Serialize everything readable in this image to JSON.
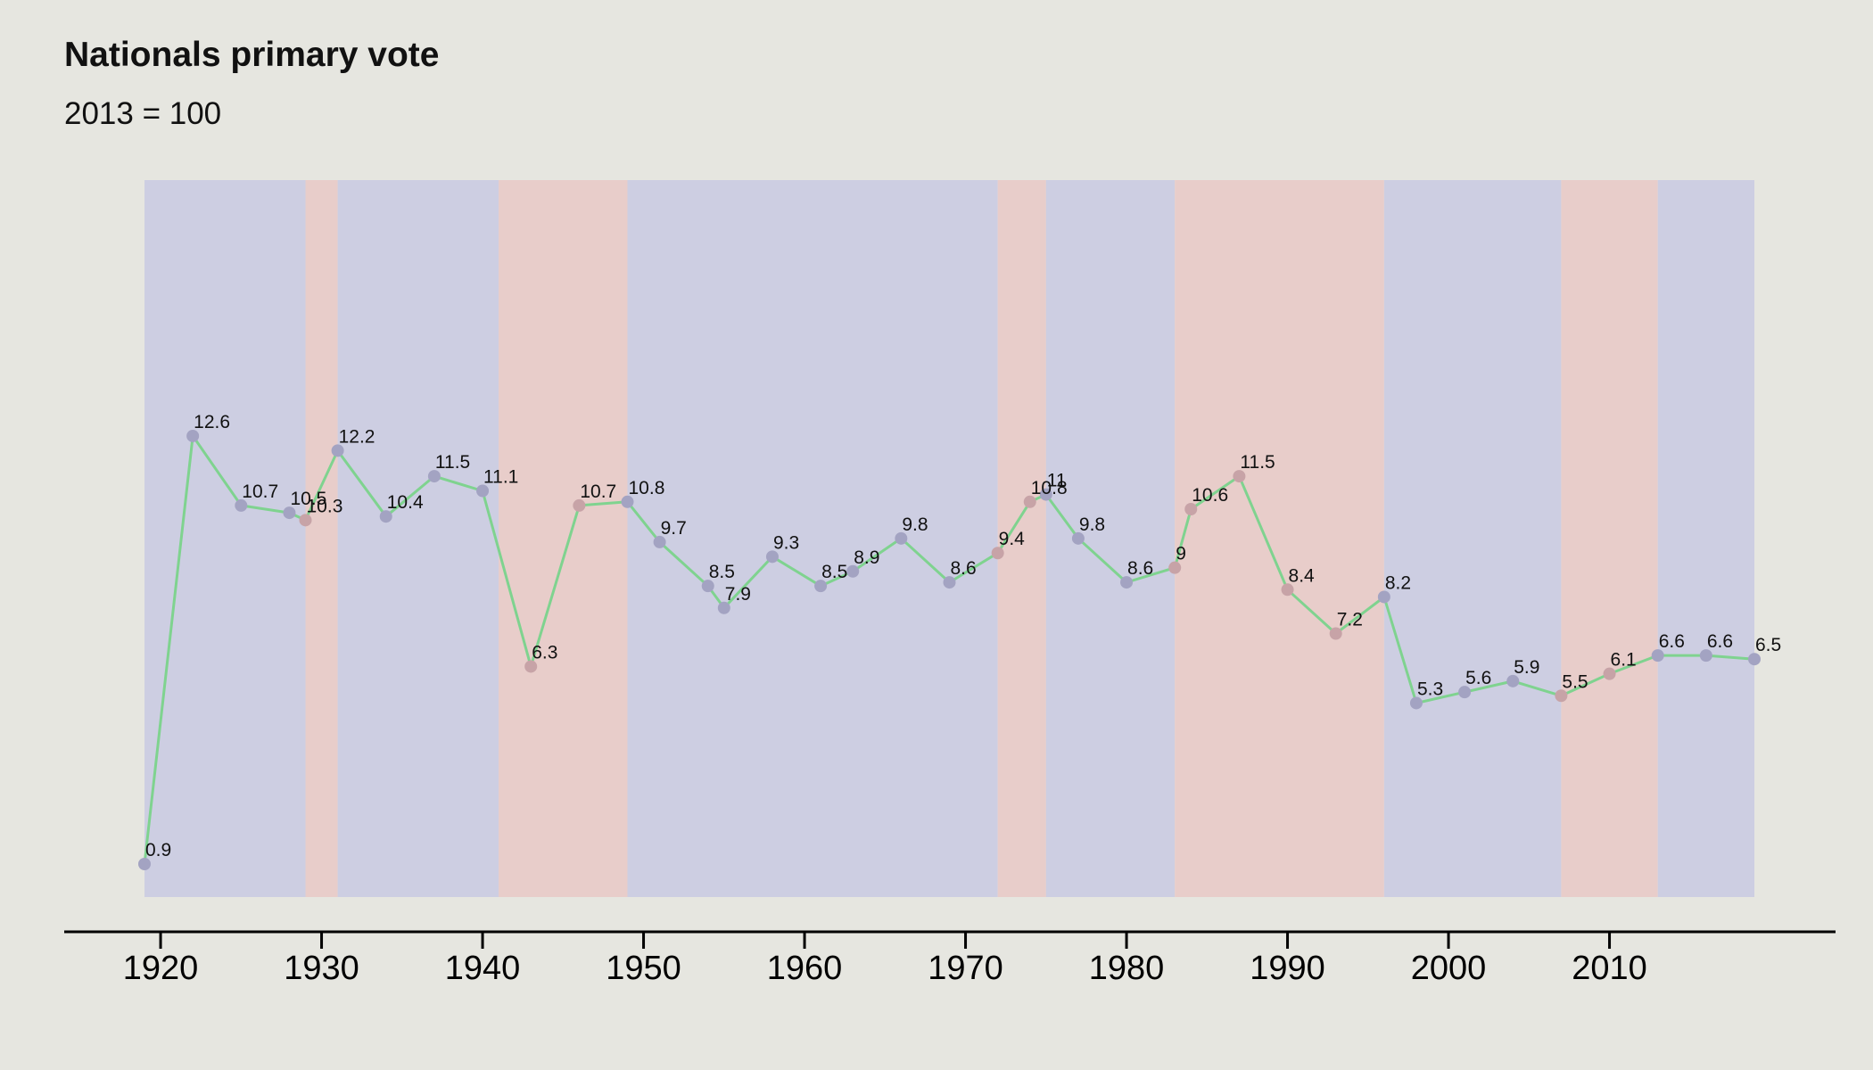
{
  "chart_data": {
    "type": "line",
    "title": "Nationals primary vote",
    "subtitle": "2013 = 100",
    "xlabel": "",
    "ylabel": "",
    "xlim": [
      1919,
      2019
    ],
    "ylim": [
      0.9,
      12.6
    ],
    "xticks": [
      1920,
      1930,
      1940,
      1950,
      1960,
      1970,
      1980,
      1990,
      2000,
      2010
    ],
    "grid": false,
    "legend": "none",
    "colors": {
      "background": "#e6e6e0",
      "band_coalition": "#cdcee2",
      "band_labor": "#e8cdca",
      "line": "#7fd38f",
      "point_coalition": "#a3a3c2",
      "point_labor": "#c7a3a7",
      "axis": "#000000"
    },
    "government_bands": [
      {
        "start": 1919,
        "end": 1929,
        "party": "coalition"
      },
      {
        "start": 1929,
        "end": 1931,
        "party": "labor"
      },
      {
        "start": 1931,
        "end": 1941,
        "party": "coalition"
      },
      {
        "start": 1941,
        "end": 1949,
        "party": "labor"
      },
      {
        "start": 1949,
        "end": 1972,
        "party": "coalition"
      },
      {
        "start": 1972,
        "end": 1975,
        "party": "labor"
      },
      {
        "start": 1975,
        "end": 1983,
        "party": "coalition"
      },
      {
        "start": 1983,
        "end": 1996,
        "party": "labor"
      },
      {
        "start": 1996,
        "end": 2007,
        "party": "coalition"
      },
      {
        "start": 2007,
        "end": 2013,
        "party": "labor"
      },
      {
        "start": 2013,
        "end": 2019,
        "party": "coalition"
      }
    ],
    "series": [
      {
        "x": [
          1919,
          1922,
          1925,
          1928,
          1929,
          1931,
          1934,
          1937,
          1940,
          1943,
          1946,
          1949,
          1951,
          1954,
          1955,
          1958,
          1961,
          1963,
          1966,
          1969,
          1972,
          1974,
          1975,
          1977,
          1980,
          1983,
          1984,
          1987,
          1990,
          1993,
          1996,
          1998,
          2001,
          2004,
          2007,
          2010,
          2013,
          2016,
          2019
        ],
        "values": [
          0.9,
          12.6,
          10.7,
          10.5,
          10.3,
          12.2,
          10.4,
          11.5,
          11.1,
          6.3,
          10.7,
          10.8,
          9.7,
          8.5,
          7.9,
          9.3,
          8.5,
          8.9,
          9.8,
          8.6,
          9.4,
          10.8,
          11,
          9.8,
          8.6,
          9,
          10.6,
          11.5,
          8.4,
          7.2,
          8.2,
          5.3,
          5.6,
          5.9,
          5.5,
          6.1,
          6.6,
          6.6,
          6.5
        ],
        "labels": [
          "0.9",
          "12.6",
          "10.7",
          "10.5",
          "10.3",
          "12.2",
          "10.4",
          "11.5",
          "11.1",
          "6.3",
          "10.7",
          "10.8",
          "9.7",
          "8.5",
          "7.9",
          "9.3",
          "8.5",
          "8.9",
          "9.8",
          "8.6",
          "9.4",
          "10.8",
          "11",
          "9.8",
          "8.6",
          "9",
          "10.6",
          "11.5",
          "8.4",
          "7.2",
          "8.2",
          "5.3",
          "5.6",
          "5.9",
          "5.5",
          "6.1",
          "6.6",
          "6.6",
          "6.5"
        ]
      }
    ]
  }
}
